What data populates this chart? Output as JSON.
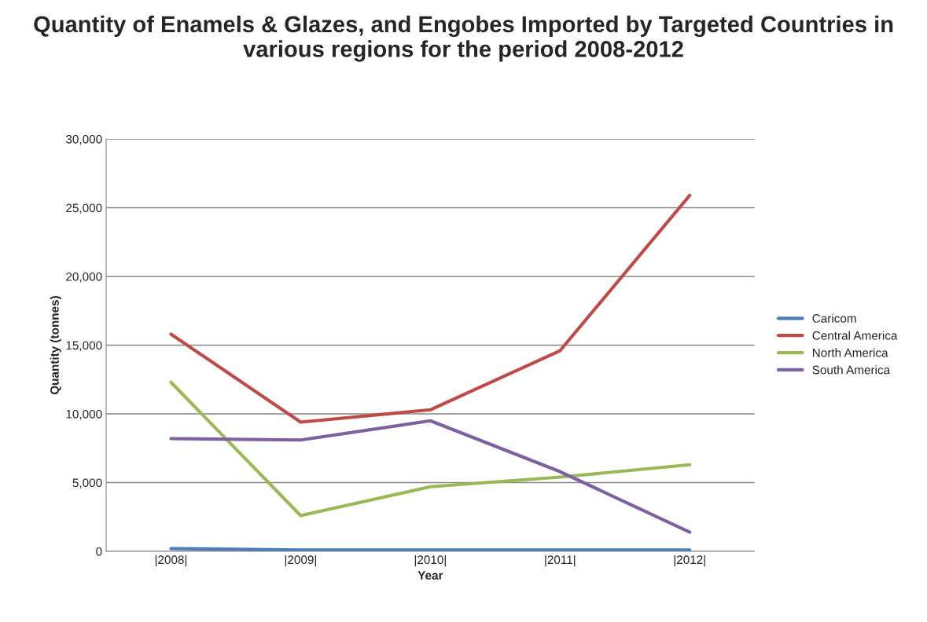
{
  "chart_data": {
    "type": "line",
    "title": "Quantity of Enamels & Glazes, and Engobes Imported by Targeted Countries in various regions for the period 2008-2012",
    "xlabel": "Year",
    "ylabel": "Quantity (tonnes)",
    "categories": [
      "|2008|",
      "|2009|",
      "|2010|",
      "|2011|",
      "|2012|"
    ],
    "series": [
      {
        "name": "Caricom",
        "color": "#4a7ebb",
        "values": [
          200,
          100,
          100,
          100,
          100
        ]
      },
      {
        "name": "Central America",
        "color": "#be4b48",
        "values": [
          15800,
          9400,
          10300,
          14600,
          25900
        ]
      },
      {
        "name": "North America",
        "color": "#98b954",
        "values": [
          12300,
          2600,
          4700,
          5400,
          6300
        ]
      },
      {
        "name": "South America",
        "color": "#7d60a0",
        "values": [
          8200,
          8100,
          9500,
          5800,
          1400
        ]
      }
    ],
    "ylim": [
      0,
      30000
    ],
    "yticks": [
      {
        "value": 0,
        "label": "0"
      },
      {
        "value": 5000,
        "label": "5,000"
      },
      {
        "value": 10000,
        "label": "10,000"
      },
      {
        "value": 15000,
        "label": "15,000"
      },
      {
        "value": 20000,
        "label": "20,000"
      },
      {
        "value": 25000,
        "label": "25,000"
      },
      {
        "value": 30000,
        "label": "30,000"
      }
    ],
    "grid": "y",
    "legend": "right",
    "marker": "none",
    "line_style": "solid"
  }
}
